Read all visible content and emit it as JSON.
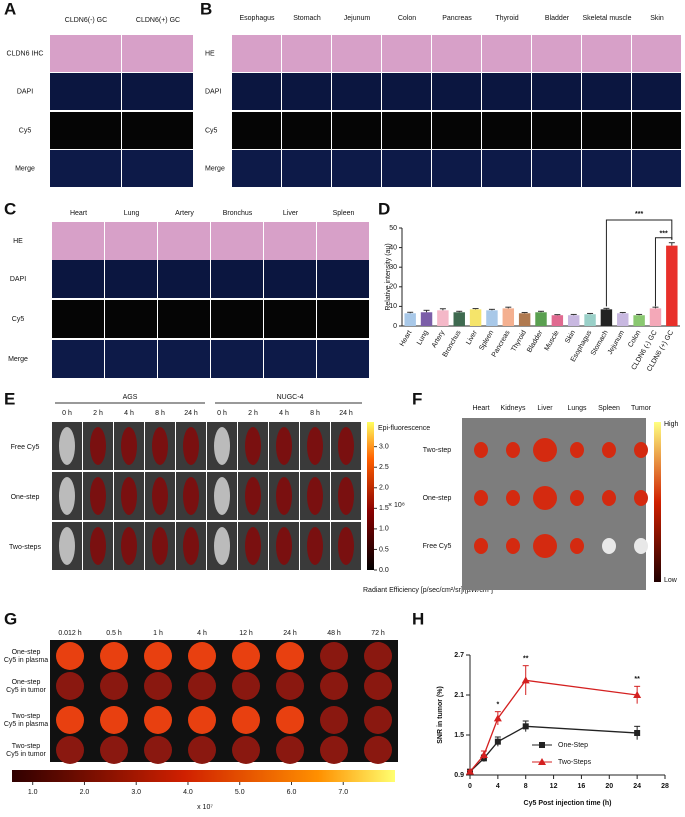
{
  "panels": {
    "A": {
      "label": "A",
      "columns": [
        "CLDN6(-) GC",
        "CLDN6(+) GC"
      ],
      "rows": [
        "CLDN6 IHC",
        "DAPI",
        "Cy5",
        "Merge"
      ]
    },
    "B": {
      "label": "B",
      "columns": [
        "Esophagus",
        "Stomach",
        "Jejunum",
        "Colon",
        "Pancreas",
        "Thyroid",
        "Bladder",
        "Skeletal muscle",
        "Skin"
      ],
      "rows": [
        "HE",
        "DAPI",
        "Cy5",
        "Merge"
      ]
    },
    "C": {
      "label": "C",
      "columns": [
        "Heart",
        "Lung",
        "Artery",
        "Bronchus",
        "Liver",
        "Spleen"
      ],
      "rows": [
        "HE",
        "DAPI",
        "Cy5",
        "Merge"
      ]
    },
    "E": {
      "label": "E",
      "groups": [
        "AGS",
        "NUGC-4"
      ],
      "times": [
        "0 h",
        "2 h",
        "4 h",
        "8 h",
        "24 h",
        "0 h",
        "2 h",
        "4 h",
        "8 h",
        "24 h"
      ],
      "rows": [
        "Free Cy5",
        "One-step",
        "Two-steps"
      ],
      "colorbar": {
        "title": "Epi-fluorescence",
        "multiplier": "× 10⁸",
        "unit": "Radiant Efficiency [p/sec/cm²/sr]/[µW/cm²]",
        "lim": [
          0,
          3.6
        ],
        "ticks": [
          {
            "value": 0,
            "label": "0.0"
          },
          {
            "value": 0.5,
            "label": "0.5"
          },
          {
            "value": 1,
            "label": "1.0"
          },
          {
            "value": 1.5,
            "label": "1.5"
          },
          {
            "value": 2,
            "label": "2.0"
          },
          {
            "value": 2.5,
            "label": "2.5"
          },
          {
            "value": 3,
            "label": "3.0"
          }
        ]
      }
    },
    "F": {
      "label": "F",
      "columns": [
        "Heart",
        "Kidneys",
        "Liver",
        "Lungs",
        "Spleen",
        "Tumor"
      ],
      "rows": [
        "Two-step",
        "One-step",
        "Free Cy5"
      ],
      "colorbar": {
        "high": "High",
        "low": "Low"
      }
    },
    "G": {
      "label": "G",
      "times": [
        "0.012 h",
        "0.5 h",
        "1 h",
        "4 h",
        "12 h",
        "24 h",
        "48 h",
        "72 h"
      ],
      "rows": [
        [
          "One-step",
          "Cy5 in plasma"
        ],
        [
          "One-step",
          "Cy5 in tumor"
        ],
        [
          "Two-step",
          "Cy5 in plasma"
        ],
        [
          "Two-step",
          "Cy5 in tumor"
        ]
      ],
      "colorbar": {
        "multiplier": "x 10⁷",
        "lim": [
          0.6,
          8.0
        ],
        "ticks": [
          {
            "value": 1,
            "label": "1.0"
          },
          {
            "value": 2,
            "label": "2.0"
          },
          {
            "value": 3,
            "label": "3.0"
          },
          {
            "value": 4,
            "label": "4.0"
          },
          {
            "value": 5,
            "label": "5.0"
          },
          {
            "value": 6,
            "label": "6.0"
          },
          {
            "value": 7,
            "label": "7.0"
          }
        ]
      }
    }
  },
  "chart_data": [
    {
      "type": "bar",
      "label": "D",
      "ylabel": "Relative intensity (au)",
      "categories": [
        "Heart",
        "Lung",
        "Artery",
        "Bronchus",
        "Liver",
        "Spleen",
        "Pancreas",
        "Thyroid",
        "Bladder",
        "Muscle",
        "Skin",
        "Esophagus",
        "Stomach",
        "Jejunum",
        "Colon",
        "CLDN6 (-) GC",
        "CLDN6 (+) GC"
      ],
      "values": [
        6.5,
        7,
        8,
        7,
        8.5,
        8,
        9,
        6.5,
        7,
        5.5,
        5.5,
        6,
        8.5,
        6.5,
        5.5,
        9,
        41
      ],
      "errors": [
        0.5,
        1,
        0.8,
        0.5,
        0.4,
        0.5,
        0.6,
        0.4,
        0.5,
        0.3,
        0.4,
        0.4,
        0.5,
        0.4,
        0.4,
        0.6,
        1.5
      ],
      "colors": [
        "#a8c8e8",
        "#7b5ea8",
        "#f4b8c8",
        "#3f6a50",
        "#f5e46a",
        "#a8c8e8",
        "#f4b090",
        "#b07a50",
        "#5aa050",
        "#e06a90",
        "#c8b8e0",
        "#9ad0c8",
        "#222222",
        "#c8b8e0",
        "#8ac870",
        "#f4a8b8",
        "#e8302a"
      ],
      "ylim": [
        0,
        50
      ],
      "yticks": [
        0,
        10,
        20,
        30,
        40,
        50
      ],
      "annotations": [
        "***",
        "***"
      ]
    },
    {
      "type": "line",
      "label": "H",
      "xlabel": "Cy5 Post injection time (h)",
      "ylabel": "SNR in tumor (%)",
      "x": [
        0,
        2,
        4,
        8,
        24
      ],
      "xlim": [
        0,
        28
      ],
      "xticks": [
        0,
        4,
        8,
        12,
        16,
        20,
        24,
        28
      ],
      "ylim": [
        0.9,
        2.7
      ],
      "yticks": [
        0.9,
        1.5,
        2.1,
        2.7
      ],
      "series": [
        {
          "name": "One-Step",
          "color": "#222222",
          "marker": "square",
          "values": [
            0.95,
            1.15,
            1.4,
            1.63,
            1.53
          ],
          "errors": [
            0.02,
            0.05,
            0.07,
            0.08,
            0.1
          ]
        },
        {
          "name": "Two-Steps",
          "color": "#d42020",
          "marker": "triangle",
          "values": [
            0.95,
            1.2,
            1.75,
            2.32,
            2.1
          ],
          "errors": [
            0.02,
            0.06,
            0.1,
            0.22,
            0.13
          ]
        }
      ],
      "annotations": [
        {
          "x": 4,
          "text": "*"
        },
        {
          "x": 8,
          "text": "**"
        },
        {
          "x": 24,
          "text": "**"
        }
      ]
    }
  ]
}
